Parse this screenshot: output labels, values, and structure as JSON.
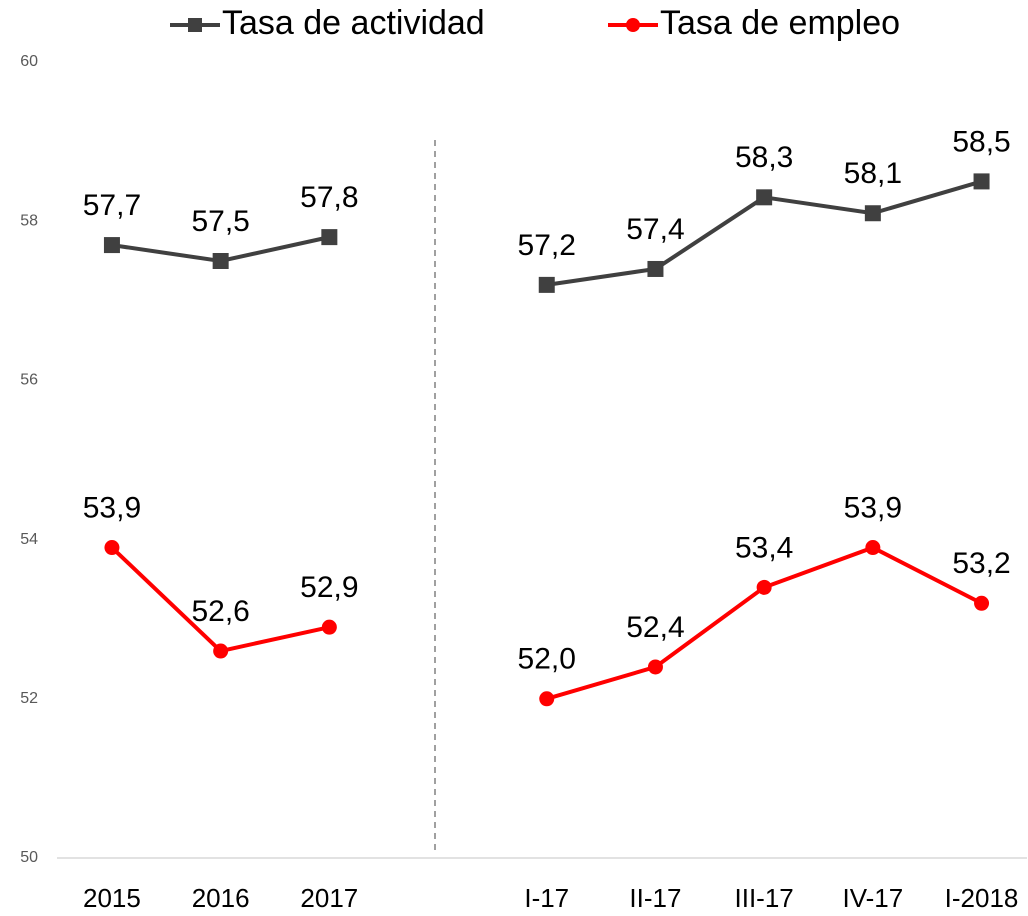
{
  "chart_data": {
    "type": "line",
    "categories": [
      "2015",
      "2016",
      "2017",
      null,
      "I-17",
      "II-17",
      "III-17",
      "IV-17",
      "I-2018"
    ],
    "series": [
      {
        "name": "Tasa de actividad",
        "color": "#404040",
        "marker": "square",
        "values": [
          57.7,
          57.5,
          57.8,
          null,
          57.2,
          57.4,
          58.3,
          58.1,
          58.5
        ],
        "value_labels": [
          "57,7",
          "57,5",
          "57,8",
          null,
          "57,2",
          "57,4",
          "58,3",
          "58,1",
          "58,5"
        ]
      },
      {
        "name": "Tasa de empleo",
        "color": "#ff0000",
        "marker": "circle",
        "values": [
          53.9,
          52.6,
          52.9,
          null,
          52.0,
          52.4,
          53.4,
          53.9,
          53.2
        ],
        "value_labels": [
          "53,9",
          "52,6",
          "52,9",
          null,
          "52,0",
          "52,4",
          "53,4",
          "53,9",
          "53,2"
        ]
      }
    ],
    "ylim": [
      50,
      60
    ],
    "yticks": [
      50,
      52,
      54,
      56,
      58,
      60
    ],
    "grid": false,
    "legend": "top"
  }
}
